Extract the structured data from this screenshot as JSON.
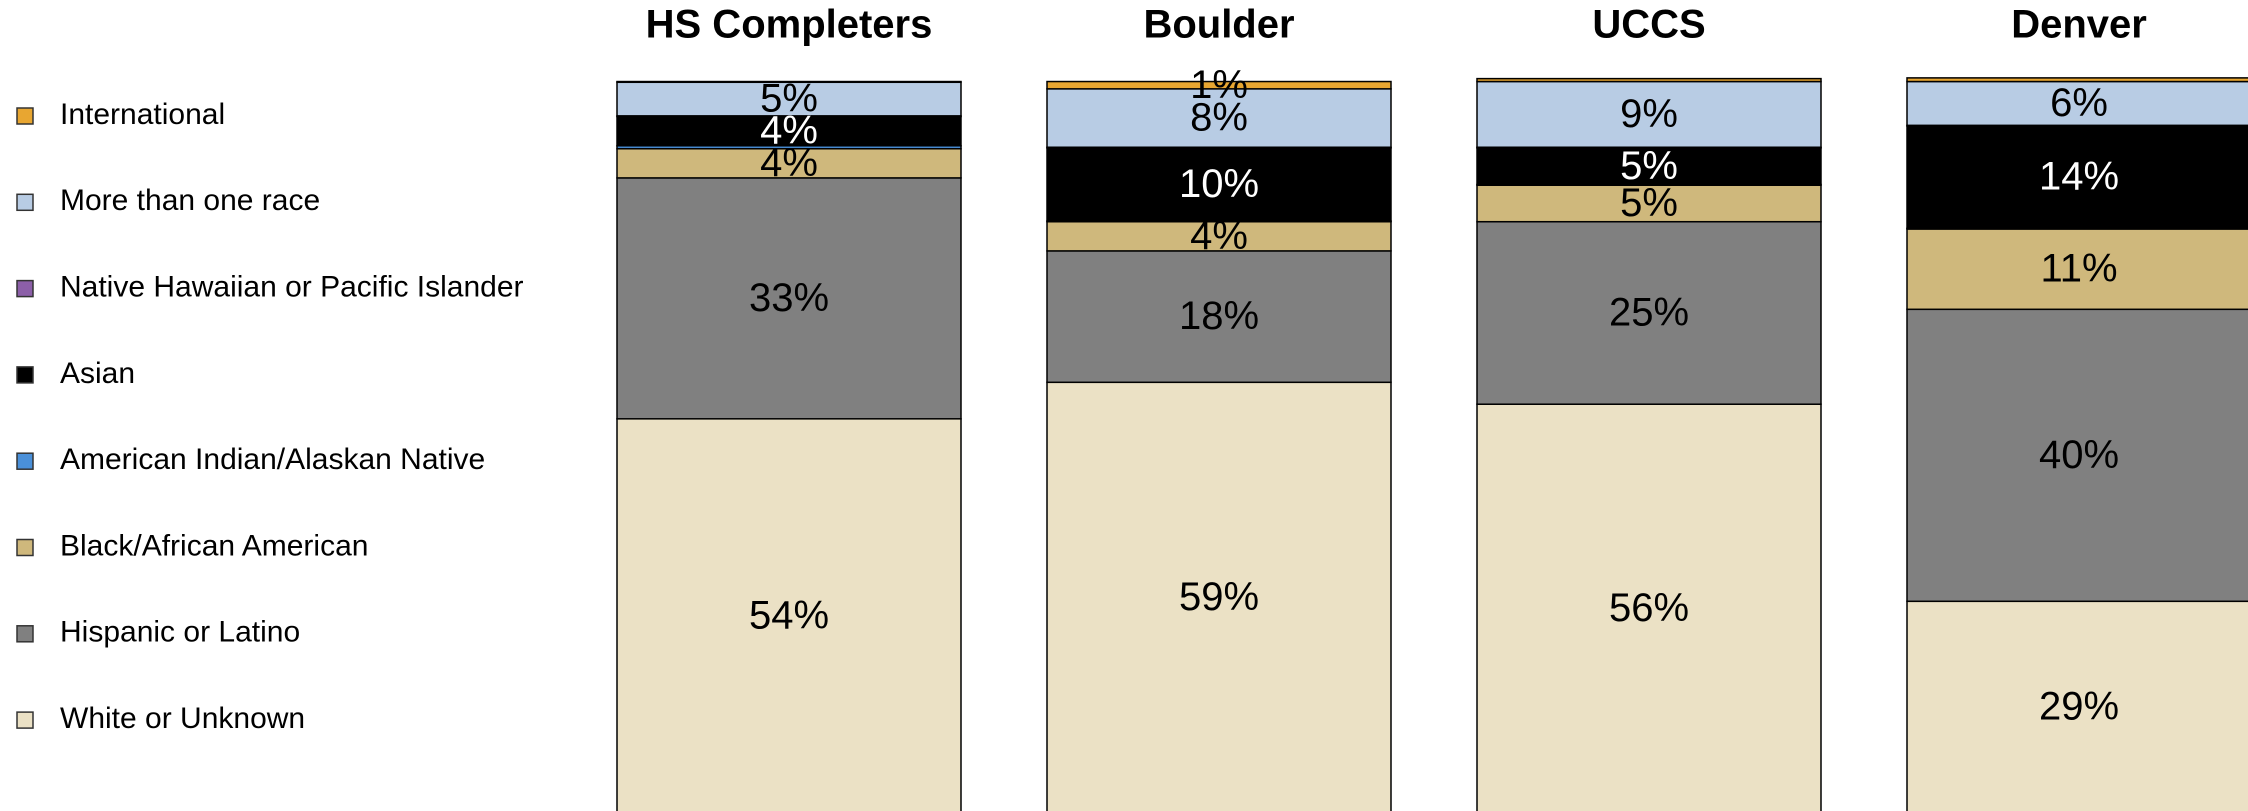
{
  "chart_data": {
    "type": "stacked-bar",
    "categories": [
      "HS Completers",
      "Boulder",
      "UCCS",
      "Denver"
    ],
    "ylim": [
      0,
      100
    ],
    "series": [
      {
        "name": "White or Unknown",
        "color": "#ebe1c5",
        "values": [
          54,
          59,
          56,
          29
        ],
        "value_labels": [
          "54%",
          "59%",
          "56%",
          "29%"
        ]
      },
      {
        "name": "Hispanic or Latino",
        "color": "#808080",
        "values": [
          33,
          18,
          25,
          40
        ],
        "value_labels": [
          "33%",
          "18%",
          "25%",
          "40%"
        ]
      },
      {
        "name": "Black/African American",
        "color": "#cfb87c",
        "values": [
          4,
          4,
          5,
          11
        ],
        "value_labels": [
          "4%",
          "4%",
          "5%",
          "11%"
        ]
      },
      {
        "name": "American Indian/Alaskan Native",
        "color": "#4a90d9",
        "values": [
          0.4,
          0.1,
          0.1,
          0.1
        ],
        "value_labels": [
          null,
          null,
          null,
          null
        ]
      },
      {
        "name": "Asian",
        "color": "#000000",
        "values": [
          4,
          10,
          5,
          14
        ],
        "value_labels": [
          "4%",
          "10%",
          "5%",
          "14%"
        ]
      },
      {
        "name": "Native Hawaiian or Pacific Islander",
        "color": "#8c5fa8",
        "values": [
          0.1,
          0.1,
          0.1,
          0.1
        ],
        "value_labels": [
          null,
          null,
          null,
          null
        ]
      },
      {
        "name": "More than one race",
        "color": "#b8cce4",
        "values": [
          4.6,
          8,
          9,
          6
        ],
        "value_labels": [
          "5%",
          "8%",
          "9%",
          "6%"
        ]
      },
      {
        "name": "International",
        "color": "#e8a631",
        "values": [
          0.1,
          1,
          0.4,
          0.5
        ],
        "value_labels": [
          null,
          "1%",
          null,
          null
        ]
      }
    ]
  }
}
